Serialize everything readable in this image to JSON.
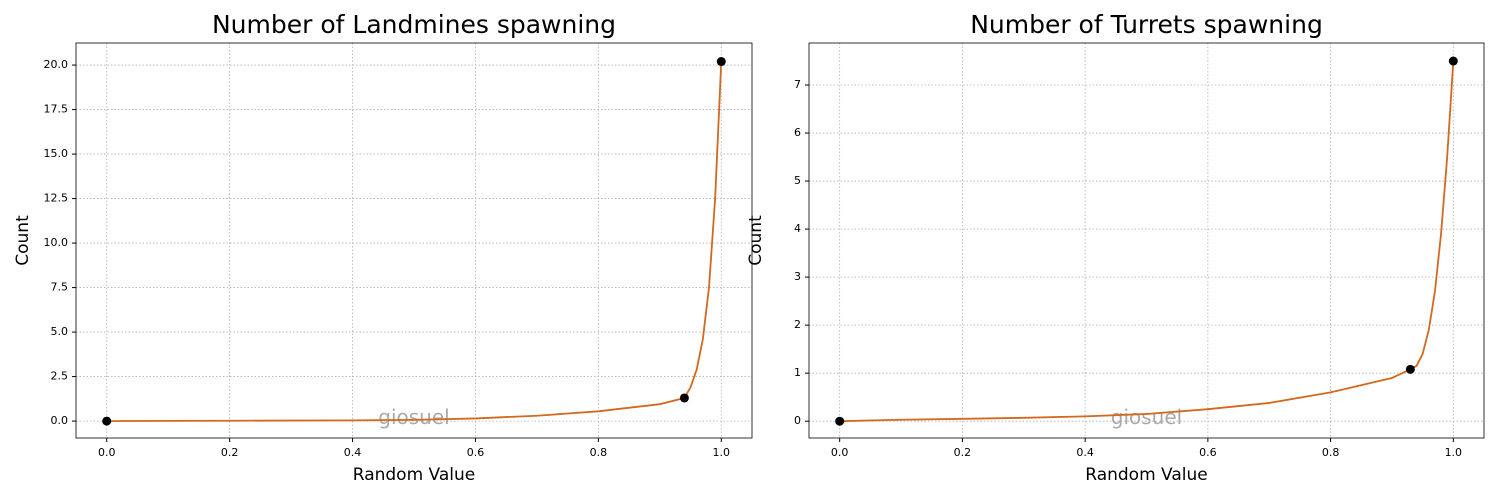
{
  "chart_data": [
    {
      "type": "line",
      "title": "Number of Landmines spawning",
      "xlabel": "Random Value",
      "ylabel": "Count",
      "watermark": "giosuel",
      "grid": true,
      "xlim": [
        -0.05,
        1.05
      ],
      "ylim": [
        -0.95,
        21.24
      ],
      "xticks": [
        {
          "value": 0,
          "label": "0.0"
        },
        {
          "value": 0.2,
          "label": "0.2"
        },
        {
          "value": 0.4,
          "label": "0.4"
        },
        {
          "value": 0.6,
          "label": "0.6"
        },
        {
          "value": 0.8,
          "label": "0.8"
        },
        {
          "value": 1,
          "label": "1.0"
        }
      ],
      "yticks": [
        {
          "value": 0,
          "label": "0.0"
        },
        {
          "value": 2.5,
          "label": "2.5"
        },
        {
          "value": 5,
          "label": "5.0"
        },
        {
          "value": 7.5,
          "label": "7.5"
        },
        {
          "value": 10,
          "label": "10.0"
        },
        {
          "value": 12.5,
          "label": "12.5"
        },
        {
          "value": 15,
          "label": "15.0"
        },
        {
          "value": 17.5,
          "label": "17.5"
        },
        {
          "value": 20,
          "label": "20.0"
        }
      ],
      "series": [
        {
          "style": "line",
          "color": "#d2691e",
          "x": [
            0,
            0.1,
            0.2,
            0.3,
            0.4,
            0.5,
            0.6,
            0.7,
            0.8,
            0.9,
            0.94,
            0.95,
            0.96,
            0.97,
            0.98,
            0.99,
            1.0
          ],
          "values": [
            0,
            0.01,
            0.02,
            0.03,
            0.04,
            0.07,
            0.15,
            0.3,
            0.55,
            0.95,
            1.3,
            1.9,
            2.9,
            4.6,
            7.5,
            12.5,
            20.2
          ]
        },
        {
          "style": "marker",
          "color": "#000000",
          "x": [
            0,
            0.94,
            1.0
          ],
          "values": [
            0,
            1.3,
            20.2
          ]
        }
      ]
    },
    {
      "type": "line",
      "title": "Number of Turrets spawning",
      "xlabel": "Random Value",
      "ylabel": "Count",
      "watermark": "giosuel",
      "grid": true,
      "xlim": [
        -0.05,
        1.05
      ],
      "ylim": [
        -0.35,
        7.875
      ],
      "xticks": [
        {
          "value": 0,
          "label": "0.0"
        },
        {
          "value": 0.2,
          "label": "0.2"
        },
        {
          "value": 0.4,
          "label": "0.4"
        },
        {
          "value": 0.6,
          "label": "0.6"
        },
        {
          "value": 0.8,
          "label": "0.8"
        },
        {
          "value": 1,
          "label": "1.0"
        }
      ],
      "yticks": [
        0,
        1,
        2,
        3,
        4,
        5,
        6,
        7
      ],
      "series": [
        {
          "style": "line",
          "color": "#d2691e",
          "x": [
            0,
            0.1,
            0.2,
            0.3,
            0.4,
            0.5,
            0.6,
            0.7,
            0.8,
            0.9,
            0.93,
            0.94,
            0.95,
            0.96,
            0.97,
            0.98,
            0.99,
            1.0
          ],
          "values": [
            0,
            0.03,
            0.05,
            0.07,
            0.1,
            0.15,
            0.25,
            0.38,
            0.6,
            0.9,
            1.08,
            1.15,
            1.4,
            1.9,
            2.7,
            3.9,
            5.5,
            7.5
          ]
        },
        {
          "style": "marker",
          "color": "#000000",
          "x": [
            0,
            0.93,
            1.0
          ],
          "values": [
            0,
            1.08,
            7.5
          ]
        }
      ]
    }
  ]
}
